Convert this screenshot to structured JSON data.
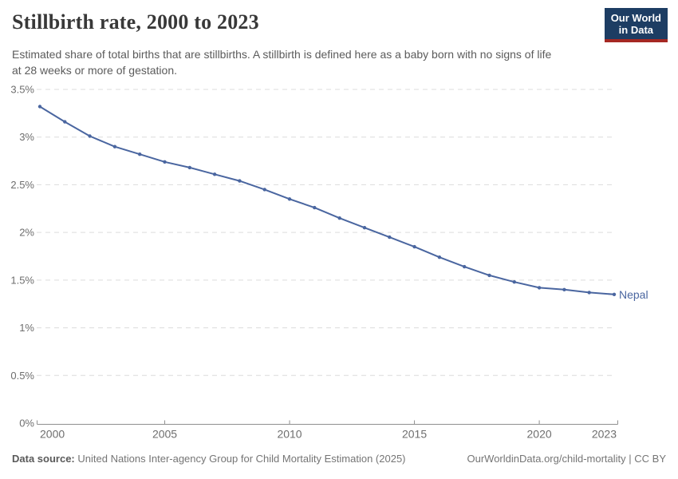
{
  "header": {
    "title": "Stillbirth rate, 2000 to 2023",
    "subtitle_line1": "Estimated share of total births that are stillbirths. A stillbirth is defined here as a baby born with no signs of life",
    "subtitle_line2": "at 28 weeks or more of gestation.",
    "logo": {
      "line1": "Our World",
      "line2": "in Data",
      "bg_color": "#1d3d63",
      "bar_color": "#a52823"
    }
  },
  "chart_data": {
    "type": "line",
    "title": "Stillbirth rate, 2000 to 2023",
    "xlabel": "",
    "ylabel": "",
    "x_range": [
      2000,
      2023
    ],
    "ylim": [
      0,
      3.5
    ],
    "grid": "horizontal-dashed",
    "legend_position": "end-of-line-label",
    "years": [
      2000,
      2001,
      2002,
      2003,
      2004,
      2005,
      2006,
      2007,
      2008,
      2009,
      2010,
      2011,
      2012,
      2013,
      2014,
      2015,
      2016,
      2017,
      2018,
      2019,
      2020,
      2021,
      2022,
      2023
    ],
    "series": [
      {
        "name": "Nepal",
        "color": "#4a66a0",
        "values": [
          3.32,
          3.16,
          3.01,
          2.9,
          2.82,
          2.74,
          2.68,
          2.61,
          2.54,
          2.45,
          2.35,
          2.26,
          2.15,
          2.05,
          1.95,
          1.85,
          1.74,
          1.64,
          1.55,
          1.48,
          1.42,
          1.4,
          1.37,
          1.35
        ]
      }
    ],
    "y_ticks": [
      {
        "value": 0,
        "label": "0%"
      },
      {
        "value": 0.5,
        "label": "0.5%"
      },
      {
        "value": 1,
        "label": "1%"
      },
      {
        "value": 1.5,
        "label": "1.5%"
      },
      {
        "value": 2,
        "label": "2%"
      },
      {
        "value": 2.5,
        "label": "2.5%"
      },
      {
        "value": 3,
        "label": "3%"
      },
      {
        "value": 3.5,
        "label": "3.5%"
      }
    ],
    "x_ticks": [
      {
        "value": 2000,
        "label": "2000"
      },
      {
        "value": 2005,
        "label": "2005"
      },
      {
        "value": 2010,
        "label": "2010"
      },
      {
        "value": 2015,
        "label": "2015"
      },
      {
        "value": 2020,
        "label": "2020"
      },
      {
        "value": 2023,
        "label": "2023"
      }
    ]
  },
  "footer": {
    "datasource_label": "Data source:",
    "datasource_text": "United Nations Inter-agency Group for Child Mortality Estimation (2025)",
    "credit": "OurWorldinData.org/child-mortality | CC BY"
  }
}
